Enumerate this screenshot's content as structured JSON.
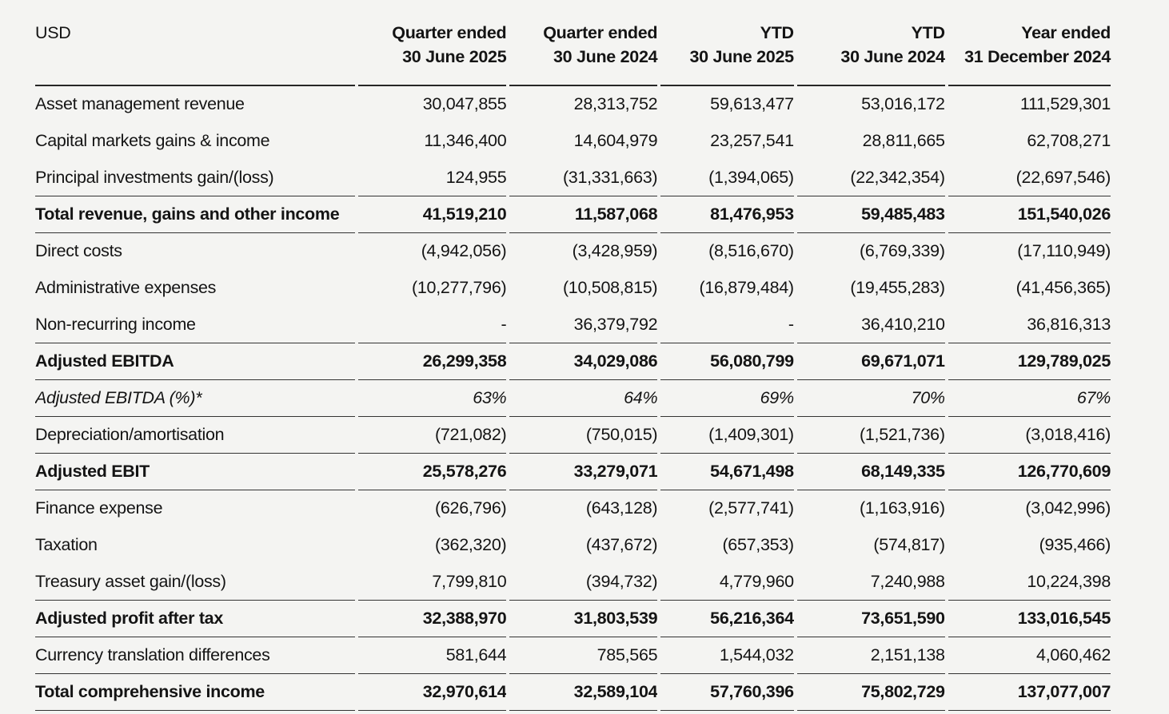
{
  "table": {
    "currency_label": "USD",
    "columns": [
      {
        "line1": "Quarter ended",
        "line2": "30 June 2025"
      },
      {
        "line1": "Quarter ended",
        "line2": "30 June 2024"
      },
      {
        "line1": "YTD",
        "line2": "30 June 2025"
      },
      {
        "line1": "YTD",
        "line2": "30 June 2024"
      },
      {
        "line1": "Year ended",
        "line2": "31 December 2024"
      }
    ],
    "rows": [
      {
        "label": "Asset management revenue",
        "values": [
          "30,047,855",
          "28,313,752",
          "59,613,477",
          "53,016,172",
          "111,529,301"
        ],
        "style": "normal",
        "rule_below": false
      },
      {
        "label": "Capital markets gains & income",
        "values": [
          "11,346,400",
          "14,604,979",
          "23,257,541",
          "28,811,665",
          "62,708,271"
        ],
        "style": "normal",
        "rule_below": false
      },
      {
        "label": "Principal investments gain/(loss)",
        "values": [
          "124,955",
          "(31,331,663)",
          "(1,394,065)",
          "(22,342,354)",
          "(22,697,546)"
        ],
        "style": "normal",
        "rule_below": true
      },
      {
        "label": "Total revenue, gains and other income",
        "values": [
          "41,519,210",
          "11,587,068",
          "81,476,953",
          "59,485,483",
          "151,540,026"
        ],
        "style": "total",
        "rule_below": true
      },
      {
        "label": "Direct costs",
        "values": [
          "(4,942,056)",
          "(3,428,959)",
          "(8,516,670)",
          "(6,769,339)",
          "(17,110,949)"
        ],
        "style": "normal",
        "rule_below": false
      },
      {
        "label": "Administrative expenses",
        "values": [
          "(10,277,796)",
          "(10,508,815)",
          "(16,879,484)",
          "(19,455,283)",
          "(41,456,365)"
        ],
        "style": "normal",
        "rule_below": false
      },
      {
        "label": "Non-recurring income",
        "values": [
          "-",
          "36,379,792",
          "-",
          "36,410,210",
          "36,816,313"
        ],
        "style": "normal",
        "rule_below": true
      },
      {
        "label": "Adjusted EBITDA",
        "values": [
          "26,299,358",
          "34,029,086",
          "56,080,799",
          "69,671,071",
          "129,789,025"
        ],
        "style": "total",
        "rule_below": true
      },
      {
        "label": "Adjusted EBITDA (%)*",
        "values": [
          "63%",
          "64%",
          "69%",
          "70%",
          "67%"
        ],
        "style": "pct",
        "rule_below": true
      },
      {
        "label": "Depreciation/amortisation",
        "values": [
          "(721,082)",
          "(750,015)",
          "(1,409,301)",
          "(1,521,736)",
          "(3,018,416)"
        ],
        "style": "normal",
        "rule_below": true
      },
      {
        "label": "Adjusted EBIT",
        "values": [
          "25,578,276",
          "33,279,071",
          "54,671,498",
          "68,149,335",
          "126,770,609"
        ],
        "style": "total",
        "rule_below": true
      },
      {
        "label": "Finance expense",
        "values": [
          "(626,796)",
          "(643,128)",
          "(2,577,741)",
          "(1,163,916)",
          "(3,042,996)"
        ],
        "style": "normal",
        "rule_below": false
      },
      {
        "label": "Taxation",
        "values": [
          "(362,320)",
          "(437,672)",
          "(657,353)",
          "(574,817)",
          "(935,466)"
        ],
        "style": "normal",
        "rule_below": false
      },
      {
        "label": "Treasury asset gain/(loss)",
        "values": [
          "7,799,810",
          "(394,732)",
          "4,779,960",
          "7,240,988",
          "10,224,398"
        ],
        "style": "normal",
        "rule_below": true
      },
      {
        "label": "Adjusted profit after tax",
        "values": [
          "32,388,970",
          "31,803,539",
          "56,216,364",
          "73,651,590",
          "133,016,545"
        ],
        "style": "total",
        "rule_below": true
      },
      {
        "label": "Currency translation differences",
        "values": [
          "581,644",
          "785,565",
          "1,544,032",
          "2,151,138",
          "4,060,462"
        ],
        "style": "normal",
        "rule_below": true
      },
      {
        "label": "Total comprehensive income",
        "values": [
          "32,970,614",
          "32,589,104",
          "57,760,396",
          "75,802,729",
          "137,077,007"
        ],
        "style": "total",
        "rule_below": true
      }
    ]
  }
}
